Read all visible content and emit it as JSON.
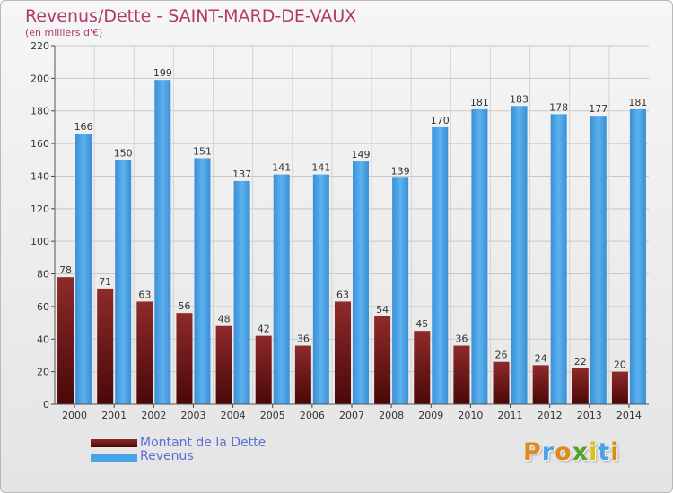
{
  "chart_data": {
    "type": "bar",
    "title": "Revenus/Dette - SAINT-MARD-DE-VAUX",
    "subtitle": "(en milliers d'€)",
    "categories": [
      "2000",
      "2001",
      "2002",
      "2003",
      "2004",
      "2005",
      "2006",
      "2007",
      "2008",
      "2009",
      "2010",
      "2011",
      "2012",
      "2013",
      "2014"
    ],
    "series": [
      {
        "name": "Montant de la Dette",
        "values": [
          78,
          71,
          63,
          56,
          48,
          42,
          36,
          63,
          54,
          45,
          36,
          26,
          24,
          22,
          20
        ],
        "color": "#7b1a1a"
      },
      {
        "name": "Revenus",
        "values": [
          166,
          150,
          199,
          151,
          137,
          141,
          141,
          149,
          139,
          170,
          181,
          183,
          178,
          177,
          181
        ],
        "color": "#4aa3e6"
      }
    ],
    "ylim": [
      0,
      220
    ],
    "yticks": [
      0,
      20,
      40,
      60,
      80,
      100,
      120,
      140,
      160,
      180,
      200,
      220
    ],
    "grid": true,
    "legend_position": "bottom-left"
  },
  "logo": {
    "text": "Proxiti"
  }
}
